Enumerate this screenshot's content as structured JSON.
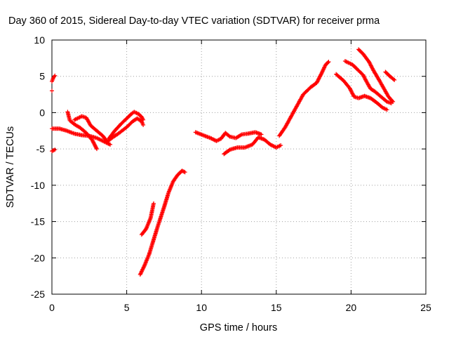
{
  "chart_data": {
    "type": "scatter",
    "title": "Day 360 of 2015, Sidereal Day-to-day VTEC variation (SDTVAR) for receiver prma",
    "xlabel": "GPS time / hours",
    "ylabel": "SDTVAR / TECUs",
    "xlim": [
      0,
      25
    ],
    "ylim": [
      -25,
      10
    ],
    "xticks": [
      0,
      5,
      10,
      15,
      20,
      25
    ],
    "yticks": [
      -25,
      -20,
      -15,
      -10,
      -5,
      0,
      5,
      10
    ],
    "grid": true,
    "marker": "plus",
    "color": "#ff0000",
    "series": [
      {
        "points": [
          [
            0.0,
            4.3
          ],
          [
            0.1,
            4.8
          ],
          [
            0.2,
            5.1
          ]
        ]
      },
      {
        "points": [
          [
            0.0,
            3.0
          ]
        ]
      },
      {
        "points": [
          [
            0.0,
            -5.3
          ],
          [
            0.2,
            -5.1
          ]
        ]
      },
      {
        "points": [
          [
            0.0,
            -2.2
          ],
          [
            0.5,
            -2.2
          ],
          [
            1.0,
            -2.5
          ],
          [
            1.5,
            -2.9
          ],
          [
            2.0,
            -3.1
          ],
          [
            2.5,
            -3.2
          ],
          [
            3.0,
            -3.5
          ],
          [
            3.5,
            -4.0
          ],
          [
            3.9,
            -4.4
          ]
        ]
      },
      {
        "points": [
          [
            1.05,
            0.1
          ],
          [
            1.2,
            -1.1
          ],
          [
            1.5,
            -1.6
          ],
          [
            1.9,
            -2.1
          ],
          [
            2.3,
            -2.8
          ],
          [
            2.7,
            -3.8
          ],
          [
            3.0,
            -5.0
          ]
        ]
      },
      {
        "points": [
          [
            1.5,
            -1.0
          ],
          [
            2.0,
            -0.5
          ],
          [
            2.3,
            -0.7
          ],
          [
            2.6,
            -1.8
          ],
          [
            3.0,
            -2.5
          ],
          [
            3.4,
            -3.2
          ],
          [
            3.7,
            -4.0
          ],
          [
            4.0,
            -3.5
          ],
          [
            4.5,
            -2.8
          ],
          [
            5.0,
            -2.0
          ],
          [
            5.4,
            -1.2
          ],
          [
            5.7,
            -0.8
          ],
          [
            6.0,
            -1.2
          ],
          [
            6.1,
            -1.7
          ]
        ]
      },
      {
        "points": [
          [
            3.8,
            -3.6
          ],
          [
            4.2,
            -2.5
          ],
          [
            4.6,
            -1.6
          ],
          [
            5.0,
            -0.8
          ],
          [
            5.3,
            -0.2
          ],
          [
            5.5,
            0.1
          ],
          [
            5.8,
            -0.2
          ],
          [
            6.0,
            -0.6
          ],
          [
            6.1,
            -1.0
          ]
        ]
      },
      {
        "points": [
          [
            6.0,
            -16.8
          ],
          [
            6.3,
            -16.0
          ],
          [
            6.6,
            -14.5
          ],
          [
            6.8,
            -12.5
          ]
        ]
      },
      {
        "points": [
          [
            5.9,
            -22.3
          ],
          [
            6.2,
            -21.0
          ],
          [
            6.5,
            -19.5
          ],
          [
            6.8,
            -17.5
          ],
          [
            7.1,
            -15.5
          ],
          [
            7.5,
            -13.0
          ],
          [
            7.8,
            -11.0
          ],
          [
            8.1,
            -9.5
          ],
          [
            8.4,
            -8.6
          ],
          [
            8.7,
            -8.0
          ],
          [
            8.9,
            -8.2
          ]
        ]
      },
      {
        "points": [
          [
            9.6,
            -2.7
          ],
          [
            10.1,
            -3.1
          ],
          [
            10.6,
            -3.5
          ],
          [
            11.0,
            -3.9
          ],
          [
            11.3,
            -3.6
          ],
          [
            11.6,
            -2.8
          ],
          [
            11.9,
            -3.3
          ],
          [
            12.3,
            -3.5
          ],
          [
            12.7,
            -3.0
          ],
          [
            13.1,
            -2.9
          ],
          [
            13.6,
            -2.7
          ],
          [
            14.0,
            -3.0
          ]
        ]
      },
      {
        "points": [
          [
            11.5,
            -5.7
          ],
          [
            11.9,
            -5.1
          ],
          [
            12.4,
            -4.8
          ],
          [
            12.9,
            -4.8
          ],
          [
            13.4,
            -4.4
          ],
          [
            13.8,
            -3.4
          ],
          [
            14.2,
            -3.7
          ],
          [
            14.6,
            -4.4
          ],
          [
            15.0,
            -4.8
          ],
          [
            15.3,
            -4.5
          ]
        ]
      },
      {
        "points": [
          [
            15.2,
            -3.2
          ],
          [
            15.6,
            -2.0
          ],
          [
            16.0,
            -0.5
          ],
          [
            16.4,
            1.0
          ],
          [
            16.8,
            2.5
          ],
          [
            17.3,
            3.5
          ],
          [
            17.7,
            4.1
          ],
          [
            18.0,
            5.3
          ],
          [
            18.3,
            6.6
          ],
          [
            18.5,
            7.0
          ]
        ]
      },
      {
        "points": [
          [
            19.0,
            5.3
          ],
          [
            19.5,
            4.4
          ],
          [
            19.9,
            3.4
          ],
          [
            20.2,
            2.2
          ],
          [
            20.5,
            2.0
          ],
          [
            20.9,
            2.3
          ],
          [
            21.3,
            2.0
          ],
          [
            21.7,
            1.4
          ],
          [
            22.1,
            0.7
          ],
          [
            22.4,
            0.4
          ]
        ]
      },
      {
        "points": [
          [
            19.6,
            7.1
          ],
          [
            20.1,
            6.6
          ],
          [
            20.4,
            6.0
          ],
          [
            20.8,
            5.2
          ],
          [
            21.0,
            4.4
          ],
          [
            21.3,
            3.3
          ],
          [
            21.6,
            2.9
          ],
          [
            22.0,
            2.2
          ],
          [
            22.4,
            1.5
          ],
          [
            22.7,
            1.3
          ]
        ]
      },
      {
        "points": [
          [
            20.5,
            8.7
          ],
          [
            20.8,
            8.1
          ],
          [
            21.2,
            7.0
          ],
          [
            21.5,
            5.8
          ],
          [
            21.9,
            4.4
          ],
          [
            22.2,
            3.3
          ],
          [
            22.5,
            2.2
          ],
          [
            22.8,
            1.5
          ]
        ]
      },
      {
        "points": [
          [
            22.3,
            5.6
          ],
          [
            22.6,
            5.0
          ],
          [
            22.9,
            4.5
          ]
        ]
      }
    ]
  }
}
